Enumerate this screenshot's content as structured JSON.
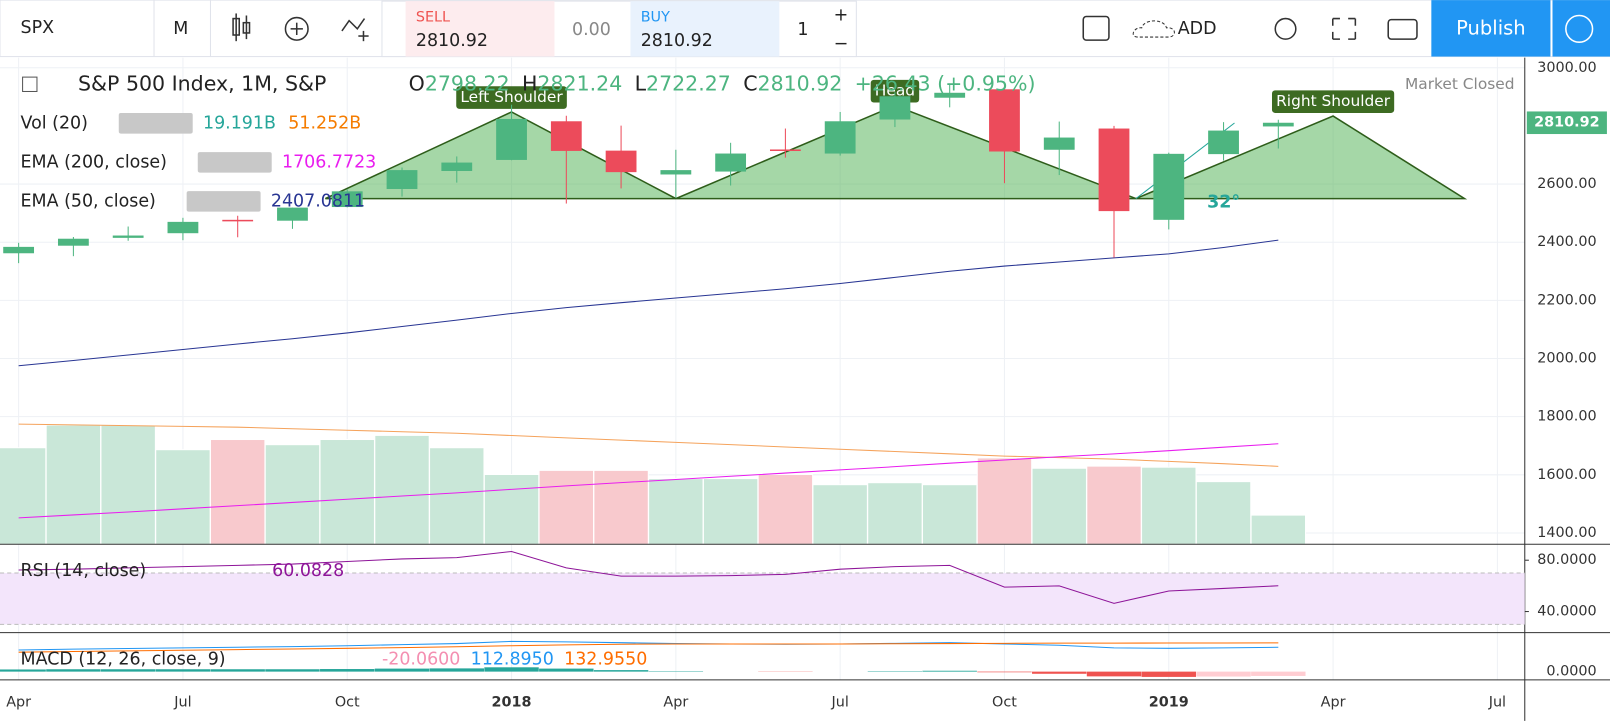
{
  "toolbar": {
    "symbol": "SPX",
    "interval": "M",
    "sell_label": "SELL",
    "sell_price": "2810.92",
    "spread": "0.00",
    "buy_label": "BUY",
    "buy_price": "2810.92",
    "quantity": "1",
    "add": "ADD",
    "publish": "Publish"
  },
  "legend": {
    "title": "S&P 500 Index, 1M, S&P",
    "ohlc_letters": [
      "O",
      "H",
      "L",
      "C"
    ],
    "change": "+26.43 (+0.95%)",
    "status": "Market Closed",
    "indicators": [
      {
        "name": "Vol (20)",
        "values": [
          "19.191B",
          "51.252B"
        ],
        "colors": [
          "#26a69a",
          "#f57c00"
        ]
      },
      {
        "name": "EMA (200, close)",
        "values": [
          "1706.7723"
        ],
        "colors": [
          "#e91eef"
        ]
      },
      {
        "name": "EMA (50, close)",
        "values": [
          "2407.0811"
        ],
        "colors": [
          "#283593"
        ]
      }
    ]
  },
  "chart_data": {
    "type": "candlestick",
    "x_axis": {
      "x": [
        0,
        3,
        6,
        9,
        12,
        15,
        18,
        21,
        24,
        27
      ],
      "labels": [
        "Apr",
        "Jul",
        "Oct",
        "2018",
        "Apr",
        "Jul",
        "Oct",
        "2019",
        "Apr",
        "Jul"
      ]
    },
    "xlim": [
      -0.34,
      27.5
    ],
    "open": [
      2362,
      2388,
      2415,
      2431,
      2477,
      2474,
      2521,
      2583,
      2645,
      2683,
      2816,
      2715,
      2633,
      2643,
      2719,
      2705,
      2822,
      2897,
      2926,
      2718,
      2791,
      2477,
      2703,
      2798.22
    ],
    "high": [
      2398,
      2418,
      2454,
      2484,
      2491,
      2519,
      2582,
      2657,
      2695,
      2873,
      2835,
      2801,
      2718,
      2742,
      2791,
      2848,
      2916,
      2941,
      2940,
      2815,
      2800,
      2708,
      2813,
      2821.24
    ],
    "low": [
      2328,
      2352,
      2405,
      2407,
      2417,
      2446,
      2520,
      2557,
      2605,
      2682,
      2533,
      2585,
      2553,
      2595,
      2691,
      2698,
      2796,
      2864,
      2603,
      2631,
      2347,
      2444,
      2681,
      2722.27
    ],
    "close": [
      2384,
      2412,
      2423,
      2470,
      2472,
      2519,
      2575,
      2648,
      2674,
      2824,
      2714,
      2641,
      2648,
      2705,
      2718,
      2816,
      2902,
      2914,
      2712,
      2760,
      2507,
      2704,
      2784,
      2810.92
    ],
    "up_color": "#4db580",
    "down_color": "#ec4b5b",
    "ylim": [
      1361,
      3035
    ],
    "yticks": [
      {
        "value": 3000,
        "label": "3000.00"
      },
      {
        "value": 2600,
        "label": "2600.00"
      },
      {
        "value": 2400,
        "label": "2400.00"
      },
      {
        "value": 2200,
        "label": "2200.00"
      },
      {
        "value": 2000,
        "label": "2000.00"
      },
      {
        "value": 1800,
        "label": "1800.00"
      },
      {
        "value": 1600,
        "label": "1600.00"
      },
      {
        "value": 1400,
        "label": "1400.00"
      }
    ],
    "grid": true,
    "volume": {
      "values": [
        63.5,
        78.4,
        78.4,
        62.2,
        68.9,
        65.5,
        68.9,
        71.6,
        63.5,
        45.9,
        48.6,
        48.6,
        43.2,
        43.2,
        45.9,
        39.2,
        40.5,
        39.2,
        56.8,
        50.0,
        51.4,
        50.7,
        41.2,
        19.191
      ],
      "ma_values": [
        79,
        78.5,
        78,
        77.5,
        77,
        76,
        75,
        74,
        73,
        71.5,
        70,
        68.5,
        67,
        65.5,
        64,
        62.5,
        61,
        59.5,
        58,
        57,
        56,
        54.5,
        53,
        51.252
      ],
      "ylim": [
        0,
        320
      ],
      "up_color": "#c9e7d8",
      "down_color": "#f8c9cd",
      "ma_color": "#f5a35c"
    },
    "ema200": {
      "values": [
        1452,
        1462,
        1472,
        1483,
        1494,
        1505,
        1516,
        1527,
        1538,
        1550,
        1562,
        1573,
        1584,
        1595,
        1606,
        1617,
        1628,
        1640,
        1651,
        1662,
        1672,
        1683,
        1695,
        1706.7723
      ],
      "color": "#e91eef"
    },
    "ema50": {
      "values": [
        1975,
        1993,
        2012,
        2031,
        2050,
        2068,
        2088,
        2110,
        2132,
        2155,
        2175,
        2192,
        2208,
        2224,
        2240,
        2258,
        2279,
        2300,
        2318,
        2332,
        2346,
        2360,
        2382,
        2407.0811
      ],
      "color": "#283593"
    },
    "pattern": {
      "x": [
        5.6,
        9,
        12,
        16,
        20.4,
        24,
        26.4
      ],
      "y": [
        2550,
        2848,
        2550,
        2870,
        2550,
        2834,
        2550
      ],
      "labels": [
        "Left Shoulder",
        "Head",
        "Right Shoulder"
      ],
      "angle_label": "32°",
      "color": "#4caf50"
    },
    "rsi": {
      "title": "RSI (14, close)",
      "value_label": "60.0828",
      "values": [
        72.4,
        73,
        74,
        75,
        76,
        77,
        79,
        81,
        82,
        86.8,
        74,
        67.6,
        67.6,
        68,
        69,
        73,
        75,
        76,
        59,
        60,
        46.4,
        56,
        58,
        60.0828
      ],
      "ylim": [
        24.4,
        91.6
      ],
      "band": [
        30,
        70
      ],
      "yticks": [
        {
          "value": 80,
          "label": "80.0000"
        },
        {
          "value": 40,
          "label": "40.0000"
        }
      ],
      "color": "#8e1599"
    },
    "macd": {
      "title": "MACD (12, 26, close, 9)",
      "value_labels": [
        "-20.0600",
        "112.8950",
        "132.9550"
      ],
      "histogram": [
        10,
        11,
        11,
        11,
        11,
        11,
        12,
        14,
        15,
        20,
        14,
        7,
        2,
        0,
        -1,
        0,
        2,
        4,
        -3,
        -10,
        -22,
        -24.5,
        -22.8,
        -20.06
      ],
      "macd": [
        100,
        104,
        107,
        110,
        113,
        116,
        120,
        125,
        130,
        140,
        138,
        134,
        130,
        128,
        127,
        128,
        131,
        134,
        128,
        122,
        110,
        108,
        110,
        112.895
      ],
      "signal": [
        90,
        93,
        96,
        99,
        102,
        105,
        108,
        111,
        115,
        120,
        124,
        127,
        128,
        128,
        128,
        128,
        129,
        130,
        131,
        132,
        132,
        132.5,
        132.8,
        132.955
      ],
      "ylim": [
        -38,
        176
      ],
      "yticks": [
        {
          "value": 0,
          "label": "0.0000"
        }
      ],
      "colors": [
        "#f48fb1",
        "#2196f3",
        "#ff6d00"
      ]
    }
  }
}
